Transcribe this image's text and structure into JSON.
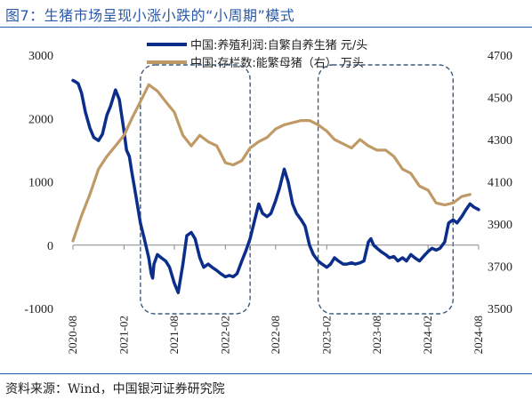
{
  "title": "图7：生猪市场呈现小涨小跌的“小周期”模式",
  "source": "资料来源：Wind，中国银河证券研究院",
  "chart_data": {
    "type": "line",
    "title": "图7：生猪市场呈现小涨小跌的“小周期”模式",
    "legend_position": "top",
    "grid": false,
    "x_ticks": [
      "2020-08",
      "2021-02",
      "2021-08",
      "2022-02",
      "2022-08",
      "2023-02",
      "2023-08",
      "2024-02",
      "2024-08"
    ],
    "y_left": {
      "ticks": [
        "3000",
        "2000",
        "1000",
        "0",
        "-1000"
      ],
      "range": [
        -1000,
        3000
      ]
    },
    "y_right": {
      "ticks": [
        "4700",
        "4500",
        "4300",
        "4100",
        "3900",
        "3700",
        "3500"
      ],
      "range": [
        3500,
        4700
      ]
    },
    "highlight_periods": [
      {
        "start": "2021-04",
        "end": "2022-05"
      },
      {
        "start": "2023-01",
        "end": "2024-05"
      }
    ],
    "series": [
      {
        "name": "中国:养殖利润:自繁自养生猪 元/头",
        "axis": "left",
        "color": "#0b2e8a",
        "points": [
          [
            "2020-08-01",
            2600
          ],
          [
            "2020-08-10",
            2580
          ],
          [
            "2020-08-20",
            2550
          ],
          [
            "2020-09-01",
            2400
          ],
          [
            "2020-09-15",
            2100
          ],
          [
            "2020-10-01",
            1850
          ],
          [
            "2020-10-15",
            1700
          ],
          [
            "2020-11-01",
            1650
          ],
          [
            "2020-11-15",
            1750
          ],
          [
            "2020-12-01",
            2050
          ],
          [
            "2020-12-15",
            2200
          ],
          [
            "2021-01-01",
            2450
          ],
          [
            "2021-01-15",
            2300
          ],
          [
            "2021-02-01",
            1800
          ],
          [
            "2021-02-10",
            1500
          ],
          [
            "2021-02-20",
            1400
          ],
          [
            "2021-03-01",
            1150
          ],
          [
            "2021-03-15",
            800
          ],
          [
            "2021-04-01",
            350
          ],
          [
            "2021-04-15",
            100
          ],
          [
            "2021-05-01",
            -200
          ],
          [
            "2021-05-10",
            -450
          ],
          [
            "2021-05-15",
            -520
          ],
          [
            "2021-05-20",
            -300
          ],
          [
            "2021-06-01",
            -150
          ],
          [
            "2021-06-15",
            -200
          ],
          [
            "2021-07-01",
            -250
          ],
          [
            "2021-07-15",
            -350
          ],
          [
            "2021-08-01",
            -600
          ],
          [
            "2021-08-15",
            -750
          ],
          [
            "2021-09-01",
            -300
          ],
          [
            "2021-09-15",
            150
          ],
          [
            "2021-10-01",
            200
          ],
          [
            "2021-10-15",
            100
          ],
          [
            "2021-11-01",
            -200
          ],
          [
            "2021-11-15",
            -350
          ],
          [
            "2021-12-01",
            -300
          ],
          [
            "2021-12-15",
            -350
          ],
          [
            "2022-01-01",
            -400
          ],
          [
            "2022-01-15",
            -450
          ],
          [
            "2022-02-01",
            -500
          ],
          [
            "2022-02-15",
            -480
          ],
          [
            "2022-03-01",
            -500
          ],
          [
            "2022-03-15",
            -450
          ],
          [
            "2022-04-01",
            -250
          ],
          [
            "2022-04-15",
            -100
          ],
          [
            "2022-05-01",
            100
          ],
          [
            "2022-05-15",
            350
          ],
          [
            "2022-06-01",
            650
          ],
          [
            "2022-06-15",
            500
          ],
          [
            "2022-07-01",
            450
          ],
          [
            "2022-07-15",
            500
          ],
          [
            "2022-08-01",
            700
          ],
          [
            "2022-08-15",
            900
          ],
          [
            "2022-09-01",
            1200
          ],
          [
            "2022-09-15",
            1000
          ],
          [
            "2022-10-01",
            650
          ],
          [
            "2022-10-15",
            500
          ],
          [
            "2022-11-01",
            400
          ],
          [
            "2022-11-15",
            300
          ],
          [
            "2022-12-01",
            0
          ],
          [
            "2022-12-15",
            -150
          ],
          [
            "2023-01-01",
            -250
          ],
          [
            "2023-01-15",
            -300
          ],
          [
            "2023-02-01",
            -350
          ],
          [
            "2023-02-15",
            -300
          ],
          [
            "2023-03-01",
            -200
          ],
          [
            "2023-03-15",
            -250
          ],
          [
            "2023-04-01",
            -300
          ],
          [
            "2023-04-15",
            -300
          ],
          [
            "2023-05-01",
            -280
          ],
          [
            "2023-05-15",
            -300
          ],
          [
            "2023-06-01",
            -280
          ],
          [
            "2023-06-15",
            -250
          ],
          [
            "2023-07-01",
            50
          ],
          [
            "2023-07-10",
            100
          ],
          [
            "2023-07-20",
            0
          ],
          [
            "2023-08-01",
            -50
          ],
          [
            "2023-08-15",
            -100
          ],
          [
            "2023-09-01",
            -150
          ],
          [
            "2023-09-15",
            -200
          ],
          [
            "2023-10-01",
            -180
          ],
          [
            "2023-10-15",
            -250
          ],
          [
            "2023-11-01",
            -200
          ],
          [
            "2023-11-15",
            -250
          ],
          [
            "2023-12-01",
            -150
          ],
          [
            "2023-12-15",
            -200
          ],
          [
            "2024-01-01",
            -250
          ],
          [
            "2024-01-15",
            -180
          ],
          [
            "2024-02-01",
            -100
          ],
          [
            "2024-02-15",
            -50
          ],
          [
            "2024-03-01",
            -80
          ],
          [
            "2024-03-15",
            -50
          ],
          [
            "2024-04-01",
            50
          ],
          [
            "2024-04-15",
            350
          ],
          [
            "2024-05-01",
            400
          ],
          [
            "2024-05-15",
            350
          ],
          [
            "2024-06-01",
            450
          ],
          [
            "2024-06-15",
            550
          ],
          [
            "2024-07-01",
            650
          ],
          [
            "2024-07-15",
            600
          ],
          [
            "2024-08-01",
            560
          ]
        ]
      },
      {
        "name": "中国:存栏数:能繁母猪（右） 万头",
        "axis": "right",
        "color": "#c09a66",
        "points": [
          [
            "2020-08-01",
            3820
          ],
          [
            "2020-09-01",
            3940
          ],
          [
            "2020-10-01",
            4040
          ],
          [
            "2020-11-01",
            4160
          ],
          [
            "2020-12-01",
            4220
          ],
          [
            "2021-01-01",
            4270
          ],
          [
            "2021-02-01",
            4320
          ],
          [
            "2021-03-01",
            4400
          ],
          [
            "2021-04-01",
            4480
          ],
          [
            "2021-05-01",
            4560
          ],
          [
            "2021-06-01",
            4530
          ],
          [
            "2021-07-01",
            4480
          ],
          [
            "2021-08-01",
            4430
          ],
          [
            "2021-09-01",
            4320
          ],
          [
            "2021-10-01",
            4270
          ],
          [
            "2021-11-01",
            4320
          ],
          [
            "2021-12-01",
            4290
          ],
          [
            "2022-01-01",
            4270
          ],
          [
            "2022-02-01",
            4190
          ],
          [
            "2022-03-01",
            4180
          ],
          [
            "2022-04-01",
            4200
          ],
          [
            "2022-05-01",
            4260
          ],
          [
            "2022-06-01",
            4290
          ],
          [
            "2022-07-01",
            4310
          ],
          [
            "2022-08-01",
            4350
          ],
          [
            "2022-09-01",
            4370
          ],
          [
            "2022-10-01",
            4380
          ],
          [
            "2022-11-01",
            4390
          ],
          [
            "2022-12-01",
            4390
          ],
          [
            "2023-01-01",
            4370
          ],
          [
            "2023-02-01",
            4340
          ],
          [
            "2023-03-01",
            4300
          ],
          [
            "2023-04-01",
            4280
          ],
          [
            "2023-05-01",
            4260
          ],
          [
            "2023-06-01",
            4300
          ],
          [
            "2023-07-01",
            4270
          ],
          [
            "2023-08-01",
            4250
          ],
          [
            "2023-09-01",
            4250
          ],
          [
            "2023-10-01",
            4220
          ],
          [
            "2023-11-01",
            4160
          ],
          [
            "2023-12-01",
            4140
          ],
          [
            "2024-01-01",
            4080
          ],
          [
            "2024-02-01",
            4060
          ],
          [
            "2024-03-01",
            4000
          ],
          [
            "2024-04-01",
            3990
          ],
          [
            "2024-05-01",
            4000
          ],
          [
            "2024-06-01",
            4030
          ],
          [
            "2024-07-01",
            4040
          ]
        ]
      }
    ]
  }
}
